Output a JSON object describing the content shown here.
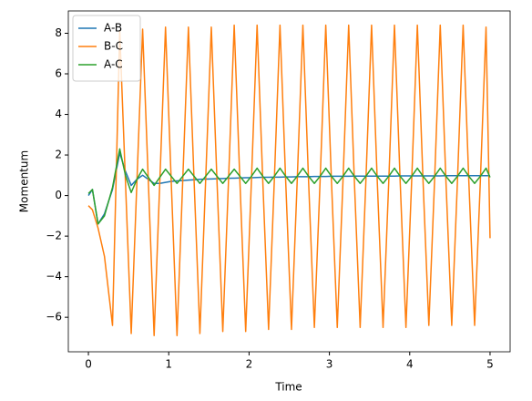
{
  "chart_data": {
    "type": "line",
    "xlabel": "Time",
    "ylabel": "Momentum",
    "x": [
      0,
      0.05,
      0.12,
      0.2,
      0.3,
      0.39,
      0.461,
      0.533,
      0.604,
      0.675,
      0.746,
      0.818,
      0.889,
      0.96,
      1.031,
      1.103,
      1.174,
      1.245,
      1.316,
      1.388,
      1.459,
      1.53,
      1.601,
      1.673,
      1.744,
      1.815,
      1.886,
      1.958,
      2.029,
      2.1,
      2.171,
      2.243,
      2.314,
      2.385,
      2.456,
      2.528,
      2.599,
      2.67,
      2.741,
      2.813,
      2.884,
      2.955,
      3.026,
      3.098,
      3.169,
      3.24,
      3.311,
      3.383,
      3.454,
      3.525,
      3.596,
      3.668,
      3.739,
      3.81,
      3.881,
      3.953,
      4.024,
      4.095,
      4.166,
      4.238,
      4.309,
      4.38,
      4.451,
      4.523,
      4.594,
      4.665,
      4.736,
      4.808,
      4.879,
      4.95,
      5.0
    ],
    "series": [
      {
        "name": "A-B",
        "color": "#1f77b4",
        "values": [
          0,
          0.3,
          -1.4,
          -0.9,
          0.3,
          2.1,
          1.2,
          0.5,
          0.8,
          1.0,
          0.8,
          0.6,
          0.6,
          0.65,
          0.7,
          0.72,
          0.74,
          0.76,
          0.78,
          0.8,
          0.81,
          0.82,
          0.83,
          0.84,
          0.85,
          0.86,
          0.87,
          0.88,
          0.88,
          0.89,
          0.9,
          0.9,
          0.91,
          0.91,
          0.92,
          0.92,
          0.93,
          0.93,
          0.93,
          0.94,
          0.94,
          0.94,
          0.95,
          0.95,
          0.95,
          0.95,
          0.96,
          0.96,
          0.96,
          0.96,
          0.96,
          0.96,
          0.96,
          0.96,
          0.97,
          0.97,
          0.97,
          0.97,
          0.97,
          0.97,
          0.97,
          0.97,
          0.98,
          0.98,
          0.98,
          0.98,
          0.98,
          0.98,
          0.98,
          0.98,
          0.98
        ]
      },
      {
        "name": "B-C",
        "color": "#ff7f0e",
        "values": [
          -0.5,
          -0.7,
          -1.6,
          -3.0,
          -6.4,
          8.1,
          0.7,
          -6.8,
          0.7,
          8.2,
          0.7,
          -6.9,
          0.7,
          8.3,
          0.7,
          -6.9,
          0.7,
          8.3,
          0.7,
          -6.8,
          0.7,
          8.3,
          0.7,
          -6.7,
          0.7,
          8.4,
          0.7,
          -6.7,
          0.7,
          8.4,
          0.7,
          -6.6,
          0.7,
          8.4,
          0.7,
          -6.6,
          0.7,
          8.4,
          0.7,
          -6.5,
          0.7,
          8.4,
          0.7,
          -6.5,
          0.7,
          8.4,
          0.7,
          -6.5,
          0.7,
          8.4,
          0.7,
          -6.5,
          0.7,
          8.4,
          0.7,
          -6.5,
          0.7,
          8.4,
          0.7,
          -6.4,
          0.7,
          8.4,
          0.7,
          -6.4,
          0.7,
          8.4,
          0.7,
          -6.4,
          0.7,
          8.3,
          -2.1
        ]
      },
      {
        "name": "A-C",
        "color": "#2ca02c",
        "values": [
          0.1,
          0.3,
          -1.4,
          -1.0,
          0.4,
          2.3,
          1.0,
          0.15,
          0.8,
          1.3,
          0.9,
          0.5,
          0.9,
          1.3,
          0.95,
          0.6,
          0.95,
          1.3,
          0.95,
          0.6,
          0.95,
          1.3,
          0.95,
          0.6,
          0.95,
          1.3,
          0.95,
          0.6,
          0.95,
          1.35,
          0.95,
          0.6,
          0.95,
          1.35,
          0.95,
          0.6,
          0.95,
          1.35,
          0.95,
          0.6,
          0.95,
          1.35,
          0.95,
          0.6,
          0.95,
          1.35,
          0.95,
          0.6,
          0.95,
          1.35,
          0.95,
          0.6,
          0.95,
          1.35,
          0.95,
          0.6,
          0.95,
          1.35,
          0.95,
          0.6,
          0.95,
          1.35,
          0.95,
          0.6,
          0.95,
          1.35,
          0.95,
          0.6,
          0.95,
          1.35,
          0.9
        ]
      }
    ],
    "xlim": [
      -0.25,
      5.25
    ],
    "xticks": [
      0,
      1,
      2,
      3,
      4,
      5
    ],
    "ylim": [
      -7.7,
      9.1
    ],
    "yticks": [
      {
        "value": -6,
        "label": "−6"
      },
      {
        "value": -4,
        "label": "−4"
      },
      {
        "value": -2,
        "label": "−2"
      },
      0,
      2,
      4,
      6,
      8
    ],
    "legend": "upper left"
  }
}
